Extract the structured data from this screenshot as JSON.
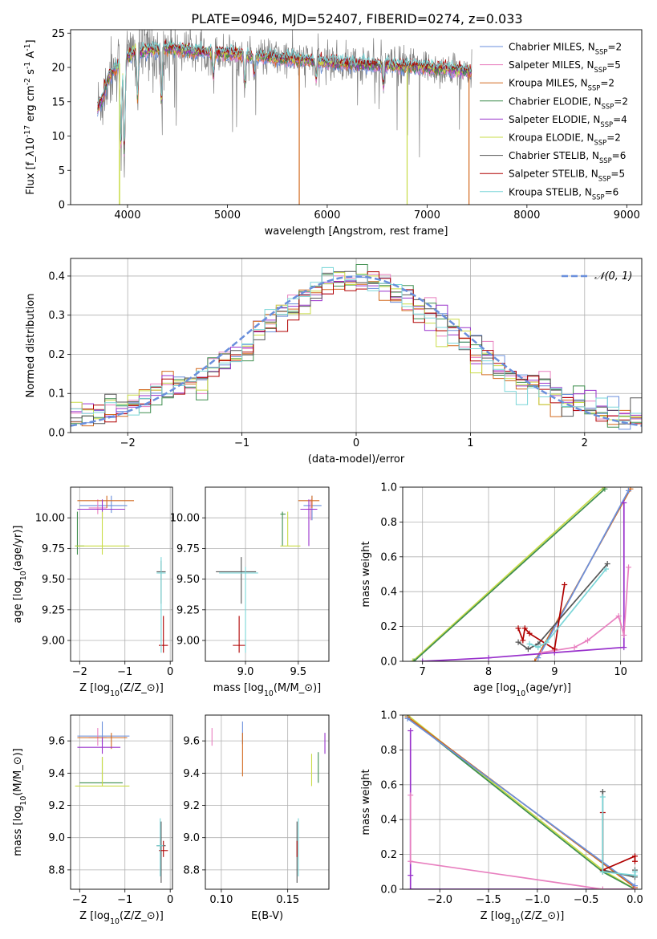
{
  "figure_title": "PLATE=0946, MJD=52407, FIBERID=0274, z=0.033",
  "colors": {
    "Chabrier MILES": "#6a8fdc",
    "Salpeter MILES": "#e87fbf",
    "Kroupa MILES": "#d2691e",
    "Chabrier ELODIE": "#3e8e4e",
    "Salpeter ELODIE": "#9932cc",
    "Kroupa ELODIE": "#c9dc47",
    "Chabrier STELIB": "#555555",
    "Salpeter STELIB": "#b00000",
    "Kroupa STELIB": "#7ad6d8",
    "data": "#808080",
    "normal": "#6a8fdc"
  },
  "chart_data": [
    {
      "id": "spectrum",
      "type": "line",
      "title": "PLATE=0946, MJD=52407, FIBERID=0274, z=0.033",
      "xlabel": "wavelength [Angstrom, rest frame]",
      "ylabel": "Flux [f$_\\lambda$10$^{-17}$ erg cm$^{-2}$ s$^{-1}$ A$^{-1}$]",
      "xlim": [
        3430,
        9150
      ],
      "ylim": [
        0,
        25.5
      ],
      "xticks": [
        4000,
        5000,
        6000,
        7000,
        8000,
        9000
      ],
      "yticks": [
        0,
        5,
        10,
        15,
        20,
        25
      ],
      "legend_position": "top-right",
      "legend": [
        {
          "name": "Chabrier MILES",
          "nssp": "2"
        },
        {
          "name": "Salpeter MILES",
          "nssp": "5"
        },
        {
          "name": "Kroupa MILES",
          "nssp": "2"
        },
        {
          "name": "Chabrier ELODIE",
          "nssp": "2"
        },
        {
          "name": "Salpeter ELODIE",
          "nssp": "4"
        },
        {
          "name": "Kroupa ELODIE",
          "nssp": "2"
        },
        {
          "name": "Chabrier STELIB",
          "nssp": "6"
        },
        {
          "name": "Salpeter STELIB",
          "nssp": "5"
        },
        {
          "name": "Kroupa STELIB",
          "nssp": "6"
        }
      ],
      "data_range": [
        3700,
        7450
      ],
      "continuum": [
        [
          3700,
          14
        ],
        [
          3760,
          16
        ],
        [
          3820,
          19
        ],
        [
          3880,
          20
        ],
        [
          3950,
          21
        ],
        [
          4050,
          22
        ],
        [
          4200,
          22.5
        ],
        [
          4400,
          22.8
        ],
        [
          4700,
          22.3
        ],
        [
          5000,
          22
        ],
        [
          5400,
          21.5
        ],
        [
          5800,
          21
        ],
        [
          6200,
          20.5
        ],
        [
          6600,
          20.3
        ],
        [
          7000,
          20
        ],
        [
          7400,
          19.5
        ],
        [
          7450,
          19.3
        ]
      ],
      "features": [
        [
          3934,
          0.6
        ],
        [
          3968,
          0.65
        ],
        [
          4101,
          0.3
        ],
        [
          4340,
          0.35
        ],
        [
          4861,
          0.15
        ],
        [
          5175,
          0.2
        ],
        [
          5270,
          0.12
        ],
        [
          5890,
          0.12
        ],
        [
          6563,
          0.15
        ]
      ],
      "dips": [
        [
          3920,
          0
        ],
        [
          5720,
          0
        ],
        [
          6800,
          0
        ],
        [
          7420,
          1
        ]
      ]
    },
    {
      "id": "residuals",
      "type": "histogram",
      "xlabel": "(data-model)/error",
      "ylabel": "Normed distribution",
      "xlim": [
        -2.5,
        2.5
      ],
      "ylim": [
        0,
        0.445
      ],
      "xticks": [
        -2,
        -1,
        0,
        1,
        2
      ],
      "yticks": [
        0.0,
        0.1,
        0.2,
        0.3,
        0.4
      ],
      "legend_position": "top-right",
      "legend_label": "$\\mathcal{N}(0,1)$",
      "bin_width": 0.1
    },
    {
      "id": "age-vs-Z",
      "type": "scatter",
      "xlabel": "Z [log$_{10}$(Z/Z$_\\odot$)]",
      "ylabel": "age  [log$_{10}$(age/yr)]",
      "xlim": [
        -2.2,
        0.05
      ],
      "ylim": [
        8.83,
        10.25
      ],
      "xticks": [
        -2,
        -1,
        0
      ],
      "yticks": [
        9.0,
        9.25,
        9.5,
        9.75,
        10.0
      ],
      "points": [
        {
          "m": "Chabrier MILES",
          "x": -1.3,
          "y": 10.1,
          "xe": [
            -2.0,
            -0.95
          ],
          "ye": [
            10.04,
            10.18
          ]
        },
        {
          "m": "Salpeter MILES",
          "x": -1.6,
          "y": 10.08,
          "xe": [
            -1.8,
            -1.4
          ],
          "ye": [
            10.03,
            10.15
          ]
        },
        {
          "m": "Kroupa MILES",
          "x": -1.4,
          "y": 10.14,
          "xe": [
            -2.05,
            -0.8
          ],
          "ye": [
            10.08,
            10.18
          ]
        },
        {
          "m": "Chabrier ELODIE",
          "x": -2.05,
          "y": 9.77,
          "xe": [
            -2.1,
            -1.9
          ],
          "ye": [
            9.7,
            10.05
          ]
        },
        {
          "m": "Salpeter ELODIE",
          "x": -1.5,
          "y": 10.07,
          "xe": [
            -2.05,
            -1.0
          ],
          "ye": [
            10.0,
            10.15
          ]
        },
        {
          "m": "Kroupa ELODIE",
          "x": -1.5,
          "y": 9.77,
          "xe": [
            -2.1,
            -0.9
          ],
          "ye": [
            9.7,
            10.05
          ]
        },
        {
          "m": "Chabrier STELIB",
          "x": -0.2,
          "y": 9.56,
          "xe": [
            -0.3,
            -0.1
          ],
          "ye": [
            9.3,
            9.65
          ]
        },
        {
          "m": "Salpeter STELIB",
          "x": -0.15,
          "y": 8.96,
          "xe": [
            -0.25,
            -0.05
          ],
          "ye": [
            8.9,
            9.2
          ]
        },
        {
          "m": "Kroupa STELIB",
          "x": -0.2,
          "y": 9.55,
          "xe": [
            -0.3,
            -0.1
          ],
          "ye": [
            8.9,
            9.68
          ]
        }
      ]
    },
    {
      "id": "age-vs-mass",
      "type": "scatter",
      "xlabel": "mass [log$_{10}$(M/M$_\\odot$)]",
      "ylabel": "",
      "xlim": [
        8.62,
        9.79
      ],
      "ylim": [
        8.83,
        10.25
      ],
      "xticks": [
        9.0,
        9.5
      ],
      "yticks": [
        9.0,
        9.25,
        9.5,
        9.75,
        10.0
      ],
      "points": [
        {
          "m": "Chabrier MILES",
          "x": 9.63,
          "y": 10.1,
          "xe": [
            9.55,
            9.72
          ],
          "ye": [
            9.98,
            10.18
          ]
        },
        {
          "m": "Salpeter MILES",
          "x": 9.62,
          "y": 10.07,
          "xe": [
            9.57,
            9.67
          ],
          "ye": [
            9.98,
            10.15
          ]
        },
        {
          "m": "Kroupa MILES",
          "x": 9.63,
          "y": 10.14,
          "xe": [
            9.5,
            9.7
          ],
          "ye": [
            10.08,
            10.18
          ]
        },
        {
          "m": "Chabrier ELODIE",
          "x": 9.35,
          "y": 10.03,
          "xe": [
            9.33,
            9.38
          ],
          "ye": [
            9.77,
            10.05
          ]
        },
        {
          "m": "Salpeter ELODIE",
          "x": 9.6,
          "y": 10.07,
          "xe": [
            9.52,
            9.68
          ],
          "ye": [
            9.77,
            10.15
          ]
        },
        {
          "m": "Kroupa ELODIE",
          "x": 9.4,
          "y": 9.77,
          "xe": [
            9.33,
            9.52
          ],
          "ye": [
            9.77,
            10.05
          ]
        },
        {
          "m": "Chabrier STELIB",
          "x": 8.96,
          "y": 9.56,
          "xe": [
            8.72,
            9.1
          ],
          "ye": [
            9.3,
            9.68
          ]
        },
        {
          "m": "Salpeter STELIB",
          "x": 8.94,
          "y": 8.96,
          "xe": [
            8.88,
            9.0
          ],
          "ye": [
            8.9,
            9.2
          ]
        },
        {
          "m": "Kroupa STELIB",
          "x": 9.0,
          "y": 9.55,
          "xe": [
            8.75,
            9.12
          ],
          "ye": [
            8.9,
            9.6
          ]
        }
      ]
    },
    {
      "id": "weight-vs-age",
      "type": "line",
      "xlabel": "age  [log$_{10}$(age/yr)]",
      "ylabel": "mass weight",
      "xlim": [
        6.7,
        10.32
      ],
      "ylim": [
        0,
        1.0
      ],
      "xticks": [
        7,
        8,
        9,
        10
      ],
      "yticks": [
        0.0,
        0.2,
        0.4,
        0.6,
        0.8,
        1.0
      ],
      "series": [
        {
          "m": "Kroupa ELODIE",
          "x": [
            6.85,
            9.75
          ],
          "y": [
            0.0,
            1.0
          ]
        },
        {
          "m": "Chabrier ELODIE",
          "x": [
            6.87,
            9.76
          ],
          "y": [
            0.0,
            0.99
          ]
        },
        {
          "m": "Kroupa MILES",
          "x": [
            8.7,
            10.15
          ],
          "y": [
            0.0,
            0.99
          ]
        },
        {
          "m": "Chabrier MILES",
          "x": [
            8.75,
            10.12
          ],
          "y": [
            0.02,
            0.98
          ]
        },
        {
          "m": "Salpeter ELODIE",
          "x": [
            7.0,
            8.0,
            9.0,
            10.05,
            10.05
          ],
          "y": [
            0.0,
            0.02,
            0.05,
            0.08,
            0.91
          ]
        },
        {
          "m": "Salpeter MILES",
          "x": [
            8.8,
            9.3,
            9.5,
            9.97,
            10.05,
            10.12
          ],
          "y": [
            0.05,
            0.08,
            0.12,
            0.26,
            0.15,
            0.54
          ]
        },
        {
          "m": "Chabrier STELIB",
          "x": [
            8.45,
            8.6,
            8.75,
            9.8
          ],
          "y": [
            0.11,
            0.07,
            0.1,
            0.56
          ]
        },
        {
          "m": "Salpeter STELIB",
          "x": [
            8.45,
            8.52,
            8.55,
            8.62,
            9.0,
            9.15
          ],
          "y": [
            0.19,
            0.12,
            0.19,
            0.16,
            0.07,
            0.44
          ]
        },
        {
          "m": "Kroupa STELIB",
          "x": [
            8.62,
            8.75,
            8.88,
            9.78
          ],
          "y": [
            0.1,
            0.08,
            0.11,
            0.53
          ]
        }
      ]
    },
    {
      "id": "mass-vs-Z",
      "type": "scatter",
      "xlabel": "Z [log$_{10}$(Z/Z$_\\odot$)]",
      "ylabel": "mass [log$_{10}$(M/M$_\\odot$)]",
      "xlim": [
        -2.2,
        0.05
      ],
      "ylim": [
        8.68,
        9.76
      ],
      "xticks": [
        -2,
        -1,
        0
      ],
      "yticks": [
        8.8,
        9.0,
        9.2,
        9.4,
        9.6
      ],
      "points": [
        {
          "m": "Chabrier MILES",
          "x": -1.5,
          "y": 9.63,
          "xe": [
            -2.05,
            -0.9
          ],
          "ye": [
            9.58,
            9.72
          ]
        },
        {
          "m": "Salpeter MILES",
          "x": -1.6,
          "y": 9.62,
          "xe": [
            -1.8,
            -1.4
          ],
          "ye": [
            9.57,
            9.68
          ]
        },
        {
          "m": "Kroupa MILES",
          "x": -1.3,
          "y": 9.62,
          "xe": [
            -2.05,
            -0.95
          ],
          "ye": [
            9.55,
            9.65
          ]
        },
        {
          "m": "Chabrier ELODIE",
          "x": -1.5,
          "y": 9.34,
          "xe": [
            -2.0,
            -1.05
          ],
          "ye": [
            9.33,
            9.5
          ]
        },
        {
          "m": "Salpeter ELODIE",
          "x": -1.5,
          "y": 9.56,
          "xe": [
            -2.05,
            -1.1
          ],
          "ye": [
            9.52,
            9.62
          ]
        },
        {
          "m": "Kroupa ELODIE",
          "x": -1.5,
          "y": 9.32,
          "xe": [
            -2.1,
            -0.9
          ],
          "ye": [
            9.32,
            9.5
          ]
        },
        {
          "m": "Chabrier STELIB",
          "x": -0.2,
          "y": 8.95,
          "xe": [
            -0.3,
            -0.1
          ],
          "ye": [
            8.72,
            9.1
          ]
        },
        {
          "m": "Salpeter STELIB",
          "x": -0.15,
          "y": 8.92,
          "xe": [
            -0.25,
            -0.05
          ],
          "ye": [
            8.88,
            8.98
          ]
        },
        {
          "m": "Kroupa STELIB",
          "x": -0.22,
          "y": 8.95,
          "xe": [
            -0.3,
            -0.15
          ],
          "ye": [
            8.76,
            9.12
          ]
        }
      ]
    },
    {
      "id": "mass-vs-ebv",
      "type": "scatter",
      "xlabel": "E(B-V)",
      "ylabel": "",
      "xlim": [
        0.088,
        0.181
      ],
      "ylim": [
        8.68,
        9.76
      ],
      "xticks": [
        0.1,
        0.15
      ],
      "yticks": [
        8.8,
        9.0,
        9.2,
        9.4,
        9.6
      ],
      "points": [
        {
          "m": "Chabrier MILES",
          "x": 0.116,
          "y": 9.63,
          "xe": [
            0.116,
            0.116
          ],
          "ye": [
            9.58,
            9.72
          ]
        },
        {
          "m": "Salpeter MILES",
          "x": 0.093,
          "y": 9.62,
          "xe": [
            0.093,
            0.093
          ],
          "ye": [
            9.57,
            9.68
          ]
        },
        {
          "m": "Kroupa MILES",
          "x": 0.116,
          "y": 9.6,
          "xe": [
            0.116,
            0.116
          ],
          "ye": [
            9.38,
            9.65
          ]
        },
        {
          "m": "Chabrier ELODIE",
          "x": 0.173,
          "y": 9.45,
          "xe": [
            0.173,
            0.173
          ],
          "ye": [
            9.34,
            9.53
          ]
        },
        {
          "m": "Salpeter ELODIE",
          "x": 0.178,
          "y": 9.58,
          "xe": [
            0.178,
            0.178
          ],
          "ye": [
            9.52,
            9.65
          ]
        },
        {
          "m": "Kroupa ELODIE",
          "x": 0.168,
          "y": 9.4,
          "xe": [
            0.168,
            0.168
          ],
          "ye": [
            9.32,
            9.52
          ]
        },
        {
          "m": "Chabrier STELIB",
          "x": 0.157,
          "y": 8.95,
          "xe": [
            0.157,
            0.157
          ],
          "ye": [
            8.72,
            9.1
          ]
        },
        {
          "m": "Salpeter STELIB",
          "x": 0.157,
          "y": 8.92,
          "xe": [
            0.157,
            0.157
          ],
          "ye": [
            8.88,
            8.98
          ]
        },
        {
          "m": "Kroupa STELIB",
          "x": 0.158,
          "y": 8.95,
          "xe": [
            0.158,
            0.158
          ],
          "ye": [
            8.76,
            9.12
          ]
        }
      ]
    },
    {
      "id": "weight-vs-Z",
      "type": "line",
      "xlabel": "Z [log$_{10}$(Z/Z$_\\odot$)]",
      "ylabel": "mass weight",
      "xlim": [
        -2.38,
        0.07
      ],
      "ylim": [
        0,
        1.0
      ],
      "xticks": [
        -2.0,
        -1.5,
        -1.0,
        -0.5,
        0.0
      ],
      "yticks": [
        0.0,
        0.2,
        0.4,
        0.6,
        0.8,
        1.0
      ],
      "series": [
        {
          "m": "Kroupa ELODIE",
          "x": [
            -2.33,
            -0.33,
            0.0
          ],
          "y": [
            1.0,
            0.11,
            0.0
          ]
        },
        {
          "m": "Chabrier ELODIE",
          "x": [
            -2.33,
            -0.33,
            0.0
          ],
          "y": [
            0.99,
            0.1,
            0.0
          ]
        },
        {
          "m": "Kroupa MILES",
          "x": [
            -2.33,
            0.0
          ],
          "y": [
            0.99,
            0.01
          ]
        },
        {
          "m": "Chabrier MILES",
          "x": [
            -2.33,
            0.0
          ],
          "y": [
            0.98,
            0.02
          ]
        },
        {
          "m": "Salpeter ELODIE",
          "x": [
            -2.3,
            -2.3,
            -2.3,
            0.0
          ],
          "y": [
            0.91,
            0.08,
            0.0,
            0.0
          ]
        },
        {
          "m": "Salpeter MILES",
          "x": [
            -2.3,
            -2.3,
            -0.33,
            0.0
          ],
          "y": [
            0.54,
            0.16,
            0.0,
            0.0
          ]
        },
        {
          "m": "Chabrier STELIB",
          "x": [
            -0.33,
            -0.33,
            0.0,
            0.0
          ],
          "y": [
            0.56,
            0.11,
            0.07,
            0.11
          ]
        },
        {
          "m": "Salpeter STELIB",
          "x": [
            -0.33,
            -0.33,
            0.0,
            0.0
          ],
          "y": [
            0.44,
            0.11,
            0.19,
            0.16
          ]
        },
        {
          "m": "Kroupa STELIB",
          "x": [
            -0.33,
            -0.33,
            0.0,
            0.0
          ],
          "y": [
            0.53,
            0.1,
            0.08,
            0.1
          ]
        }
      ]
    }
  ]
}
